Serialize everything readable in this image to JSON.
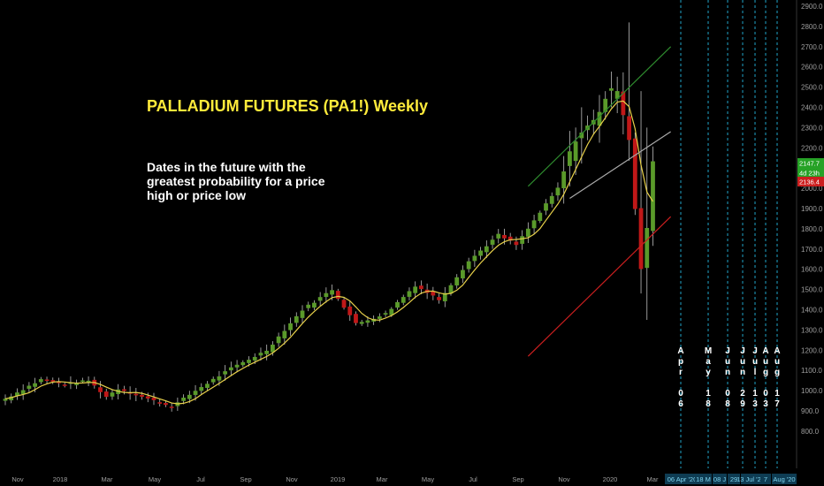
{
  "chart_data": {
    "type": "candlestick",
    "title": "PALLADIUM FUTURES (PA1!) Weekly",
    "annotation": "Dates in the future with the greatest probability for a price high or price low",
    "y_ticks": [
      800,
      900,
      1000,
      1100,
      1200,
      1300,
      1400,
      1500,
      1600,
      1700,
      1800,
      1900,
      2000,
      2100,
      2200,
      2300,
      2400,
      2500,
      2600,
      2700,
      2800,
      2900
    ],
    "ylim": [
      740,
      2960
    ],
    "x_ticks": [
      "Nov",
      "2018",
      "Mar",
      "May",
      "Jul",
      "Sep",
      "Nov",
      "2019",
      "Mar",
      "May",
      "Jul",
      "Sep",
      "Nov",
      "2020",
      "Mar"
    ],
    "price_labels": [
      {
        "text": "2147.7",
        "value": 2147.7,
        "color": "#26a226"
      },
      {
        "text": "4d 23h",
        "value": 2110,
        "color": "#26a226"
      },
      {
        "text": "2136.4",
        "value": 2136.4,
        "color": "#cc1f1f"
      }
    ],
    "future_dates": [
      {
        "vertical": [
          "A",
          "p",
          "r",
          "",
          "0",
          "6"
        ],
        "date_label": "06 Apr '20"
      },
      {
        "vertical": [
          "M",
          "a",
          "y",
          "",
          "1",
          "8"
        ],
        "date_label": "18 M"
      },
      {
        "vertical": [
          "J",
          "u",
          "n",
          "",
          "0",
          "8"
        ],
        "date_label": "08 J"
      },
      {
        "vertical": [
          "J",
          "u",
          "n",
          "",
          "2",
          "9"
        ],
        "date_label": "29"
      },
      {
        "vertical": [
          "J",
          "u",
          "l",
          "",
          "1",
          "3"
        ],
        "date_label": "13 Jul '20"
      },
      {
        "vertical": [
          "A",
          "u",
          "g",
          "",
          "0",
          "3"
        ],
        "date_label": "7"
      },
      {
        "vertical": [
          "A",
          "u",
          "g",
          "",
          "1",
          "7"
        ],
        "date_label": "Aug '20"
      }
    ],
    "anchors": [
      {
        "date_index": 0,
        "price": 960
      },
      {
        "date_index": 6,
        "price": 1055
      },
      {
        "date_index": 10,
        "price": 1030
      },
      {
        "date_index": 14,
        "price": 1050
      },
      {
        "date_index": 17,
        "price": 970
      },
      {
        "date_index": 19,
        "price": 1010
      },
      {
        "date_index": 24,
        "price": 960
      },
      {
        "date_index": 28,
        "price": 920
      },
      {
        "date_index": 32,
        "price": 1000
      },
      {
        "date_index": 38,
        "price": 1110
      },
      {
        "date_index": 44,
        "price": 1200
      },
      {
        "date_index": 50,
        "price": 1400
      },
      {
        "date_index": 55,
        "price": 1500
      },
      {
        "date_index": 59,
        "price": 1330
      },
      {
        "date_index": 64,
        "price": 1380
      },
      {
        "date_index": 69,
        "price": 1520
      },
      {
        "date_index": 73,
        "price": 1450
      },
      {
        "date_index": 78,
        "price": 1640
      },
      {
        "date_index": 83,
        "price": 1770
      },
      {
        "date_index": 86,
        "price": 1720
      },
      {
        "date_index": 89,
        "price": 1840
      },
      {
        "date_index": 93,
        "price": 2000
      },
      {
        "date_index": 96,
        "price": 2250
      },
      {
        "date_index": 99,
        "price": 2330
      },
      {
        "date_index": 101,
        "price": 2450
      },
      {
        "date_index": 103,
        "price": 2500
      },
      {
        "date_index": 105,
        "price": 2250
      },
      {
        "date_index": 106,
        "price": 1900
      },
      {
        "date_index": 107,
        "price": 1600
      },
      {
        "date_index": 108,
        "price": 1800
      },
      {
        "date_index": 109,
        "price": 2140
      }
    ],
    "trend_lines": [
      {
        "color": "#2e8b2e",
        "p1": {
          "date_index": 88,
          "price": 2010
        },
        "p2": {
          "date_index": 112,
          "price": 2700
        }
      },
      {
        "color": "#cc1f1f",
        "p1": {
          "date_index": 88,
          "price": 1170
        },
        "p2": {
          "date_index": 112,
          "price": 1860
        }
      },
      {
        "color": "#aaaaaa",
        "p1": {
          "date_index": 95,
          "price": 1950
        },
        "p2": {
          "date_index": 112,
          "price": 2280
        }
      }
    ],
    "colors": {
      "up": "#5a9a2a",
      "down": "#c01818",
      "ma": "#e8d14a",
      "cycle": "#1fa5c9",
      "axis_text": "#9e9e9e"
    }
  }
}
